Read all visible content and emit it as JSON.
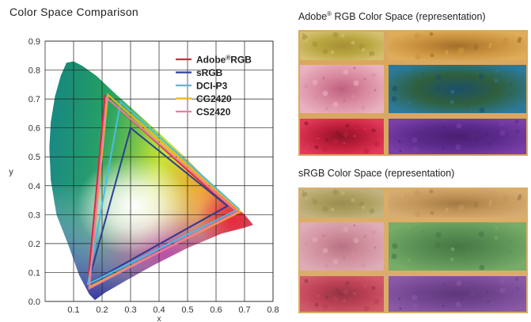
{
  "title": "Color Space Comparison",
  "samples": [
    {
      "title_main": "Adobe",
      "title_mark": "®",
      "title_rest": " RGB Color Space (representation)",
      "saturation": "high"
    },
    {
      "title_main": "sRGB Color Space (representation)",
      "title_mark": "",
      "title_rest": "",
      "saturation": "low"
    }
  ],
  "chart_data": {
    "type": "scatter",
    "xlabel": "x",
    "ylabel": "y",
    "xlim": [
      0,
      0.8
    ],
    "ylim": [
      0,
      0.9
    ],
    "xticks": [
      "0.1",
      "0.2",
      "0.3",
      "0.4",
      "0.5",
      "0.6",
      "0.7",
      "0.8"
    ],
    "yticks": [
      "0.0",
      "0.1",
      "0.2",
      "0.3",
      "0.4",
      "0.5",
      "0.6",
      "0.7",
      "0.8",
      "0.9"
    ],
    "grid": true,
    "legend_position": "top-right",
    "series": [
      {
        "name": "Adobe",
        "mark": "®",
        "name_rest": "RGB",
        "color": "#d42b3a",
        "points": [
          [
            0.64,
            0.33
          ],
          [
            0.21,
            0.71
          ],
          [
            0.15,
            0.06
          ]
        ]
      },
      {
        "name": "sRGB",
        "mark": "",
        "name_rest": "",
        "color": "#2a3f94",
        "points": [
          [
            0.64,
            0.33
          ],
          [
            0.3,
            0.6
          ],
          [
            0.15,
            0.06
          ]
        ]
      },
      {
        "name": "DCI-P3",
        "mark": "",
        "name_rest": "",
        "color": "#45bfe4",
        "points": [
          [
            0.68,
            0.32
          ],
          [
            0.265,
            0.69
          ],
          [
            0.15,
            0.06
          ]
        ]
      },
      {
        "name": "CG2420",
        "mark": "",
        "name_rest": "",
        "color": "#f2b01e",
        "points": [
          [
            0.685,
            0.31
          ],
          [
            0.22,
            0.715
          ],
          [
            0.155,
            0.05
          ]
        ]
      },
      {
        "name": "CS2420",
        "mark": "",
        "name_rest": "",
        "color": "#ee7ba3",
        "points": [
          [
            0.675,
            0.31
          ],
          [
            0.215,
            0.705
          ],
          [
            0.155,
            0.045
          ]
        ]
      }
    ]
  }
}
